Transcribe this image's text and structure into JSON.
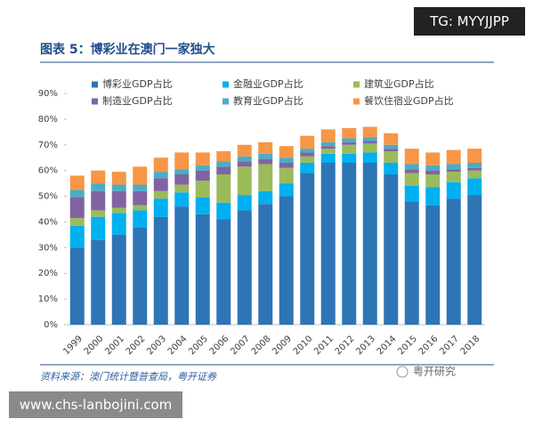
{
  "chart_data": {
    "type": "stacked_bar",
    "title": "图表 5：博彩业在澳门一家独大",
    "source": "资料来源：澳门统计暨普查局，粤开证券",
    "watermark": "粤开研究",
    "categories": [
      "1999",
      "2000",
      "2001",
      "2002",
      "2003",
      "2004",
      "2005",
      "2006",
      "2007",
      "2008",
      "2009",
      "2010",
      "2011",
      "2012",
      "2013",
      "2014",
      "2015",
      "2016",
      "2017",
      "2018"
    ],
    "series": [
      {
        "name": "博彩业GDP占比",
        "color": "#2e75b6",
        "values": [
          30,
          33,
          35,
          38,
          42,
          46,
          43,
          41,
          44.5,
          47,
          50,
          59,
          63,
          63,
          63,
          58.5,
          48,
          46.5,
          49,
          50.5
        ]
      },
      {
        "name": "金融业GDP占比",
        "color": "#00b0f0",
        "values": [
          8.5,
          9,
          8.5,
          6.5,
          7,
          5.5,
          6.5,
          6.5,
          6,
          5,
          5,
          4,
          3.5,
          3.5,
          4,
          4.5,
          6,
          7,
          6.5,
          6.5
        ]
      },
      {
        "name": "建筑业GDP占比",
        "color": "#9bbb59",
        "values": [
          3,
          2.5,
          2,
          2,
          3,
          3,
          6.5,
          11,
          11,
          10.5,
          6,
          2.5,
          2,
          3.5,
          3.5,
          4.5,
          5,
          5,
          4,
          3
        ]
      },
      {
        "name": "制造业GDP占比",
        "color": "#8064a2",
        "values": [
          8,
          7.5,
          6.5,
          5.5,
          5,
          4,
          4,
          3,
          2,
          2,
          2,
          1.5,
          1,
          1,
          1,
          1,
          1.5,
          1.5,
          1,
          1
        ]
      },
      {
        "name": "教育业GDP占比",
        "color": "#4bacc6",
        "values": [
          3,
          3,
          2.5,
          2.5,
          2.5,
          2,
          2,
          2,
          2,
          2,
          2,
          1.5,
          1.5,
          1.5,
          1.5,
          1.5,
          2,
          2,
          2,
          2
        ]
      },
      {
        "name": "餐饮住宿业GDP占比",
        "color": "#f79646",
        "values": [
          5.5,
          5,
          5,
          7,
          5.5,
          6.5,
          5,
          4,
          4.5,
          4.5,
          4.5,
          5,
          5,
          4,
          4,
          4.5,
          6,
          5,
          5.5,
          5.5
        ]
      }
    ],
    "ylim": [
      0,
      90
    ],
    "yticks": [
      {
        "value": 0,
        "label": "0%"
      },
      {
        "value": 10,
        "label": "10%"
      },
      {
        "value": 20,
        "label": "20%"
      },
      {
        "value": 30,
        "label": "30%"
      },
      {
        "value": 40,
        "label": "40%"
      },
      {
        "value": 50,
        "label": "50%"
      },
      {
        "value": 60,
        "label": "60%"
      },
      {
        "value": 70,
        "label": "70%"
      },
      {
        "value": 80,
        "label": "80%"
      },
      {
        "value": 90,
        "label": "90%"
      }
    ]
  },
  "overlays": {
    "top": "TG: MYYJJPP",
    "bottom": "www.chs-lanbojini.com"
  }
}
